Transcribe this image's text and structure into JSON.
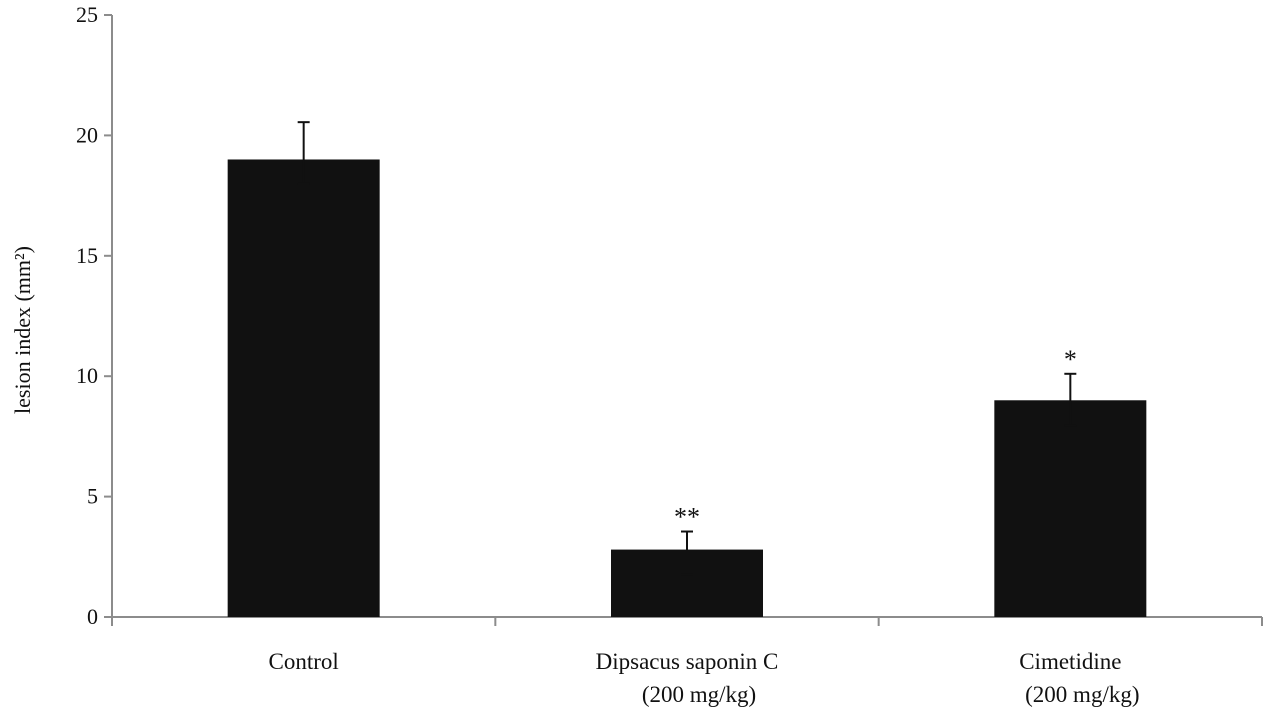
{
  "chart_data": {
    "type": "bar",
    "categories": [
      [
        "Control"
      ],
      [
        "Dipsacus saponin C",
        "(200 mg/kg)"
      ],
      [
        "Cimetidine",
        "(200 mg/kg)"
      ]
    ],
    "values": [
      19.0,
      2.8,
      9.0
    ],
    "error_upper": [
      20.55,
      3.55,
      10.1
    ],
    "error_lower": [
      18.0,
      1.75,
      7.95
    ],
    "annotations": [
      "",
      "**",
      "*"
    ],
    "ylabel": "lesion index (mm²)",
    "ylim": [
      0,
      25
    ],
    "yticks": [
      0,
      5,
      10,
      15,
      20,
      25
    ],
    "grid": false,
    "bar_color": "#111111"
  }
}
